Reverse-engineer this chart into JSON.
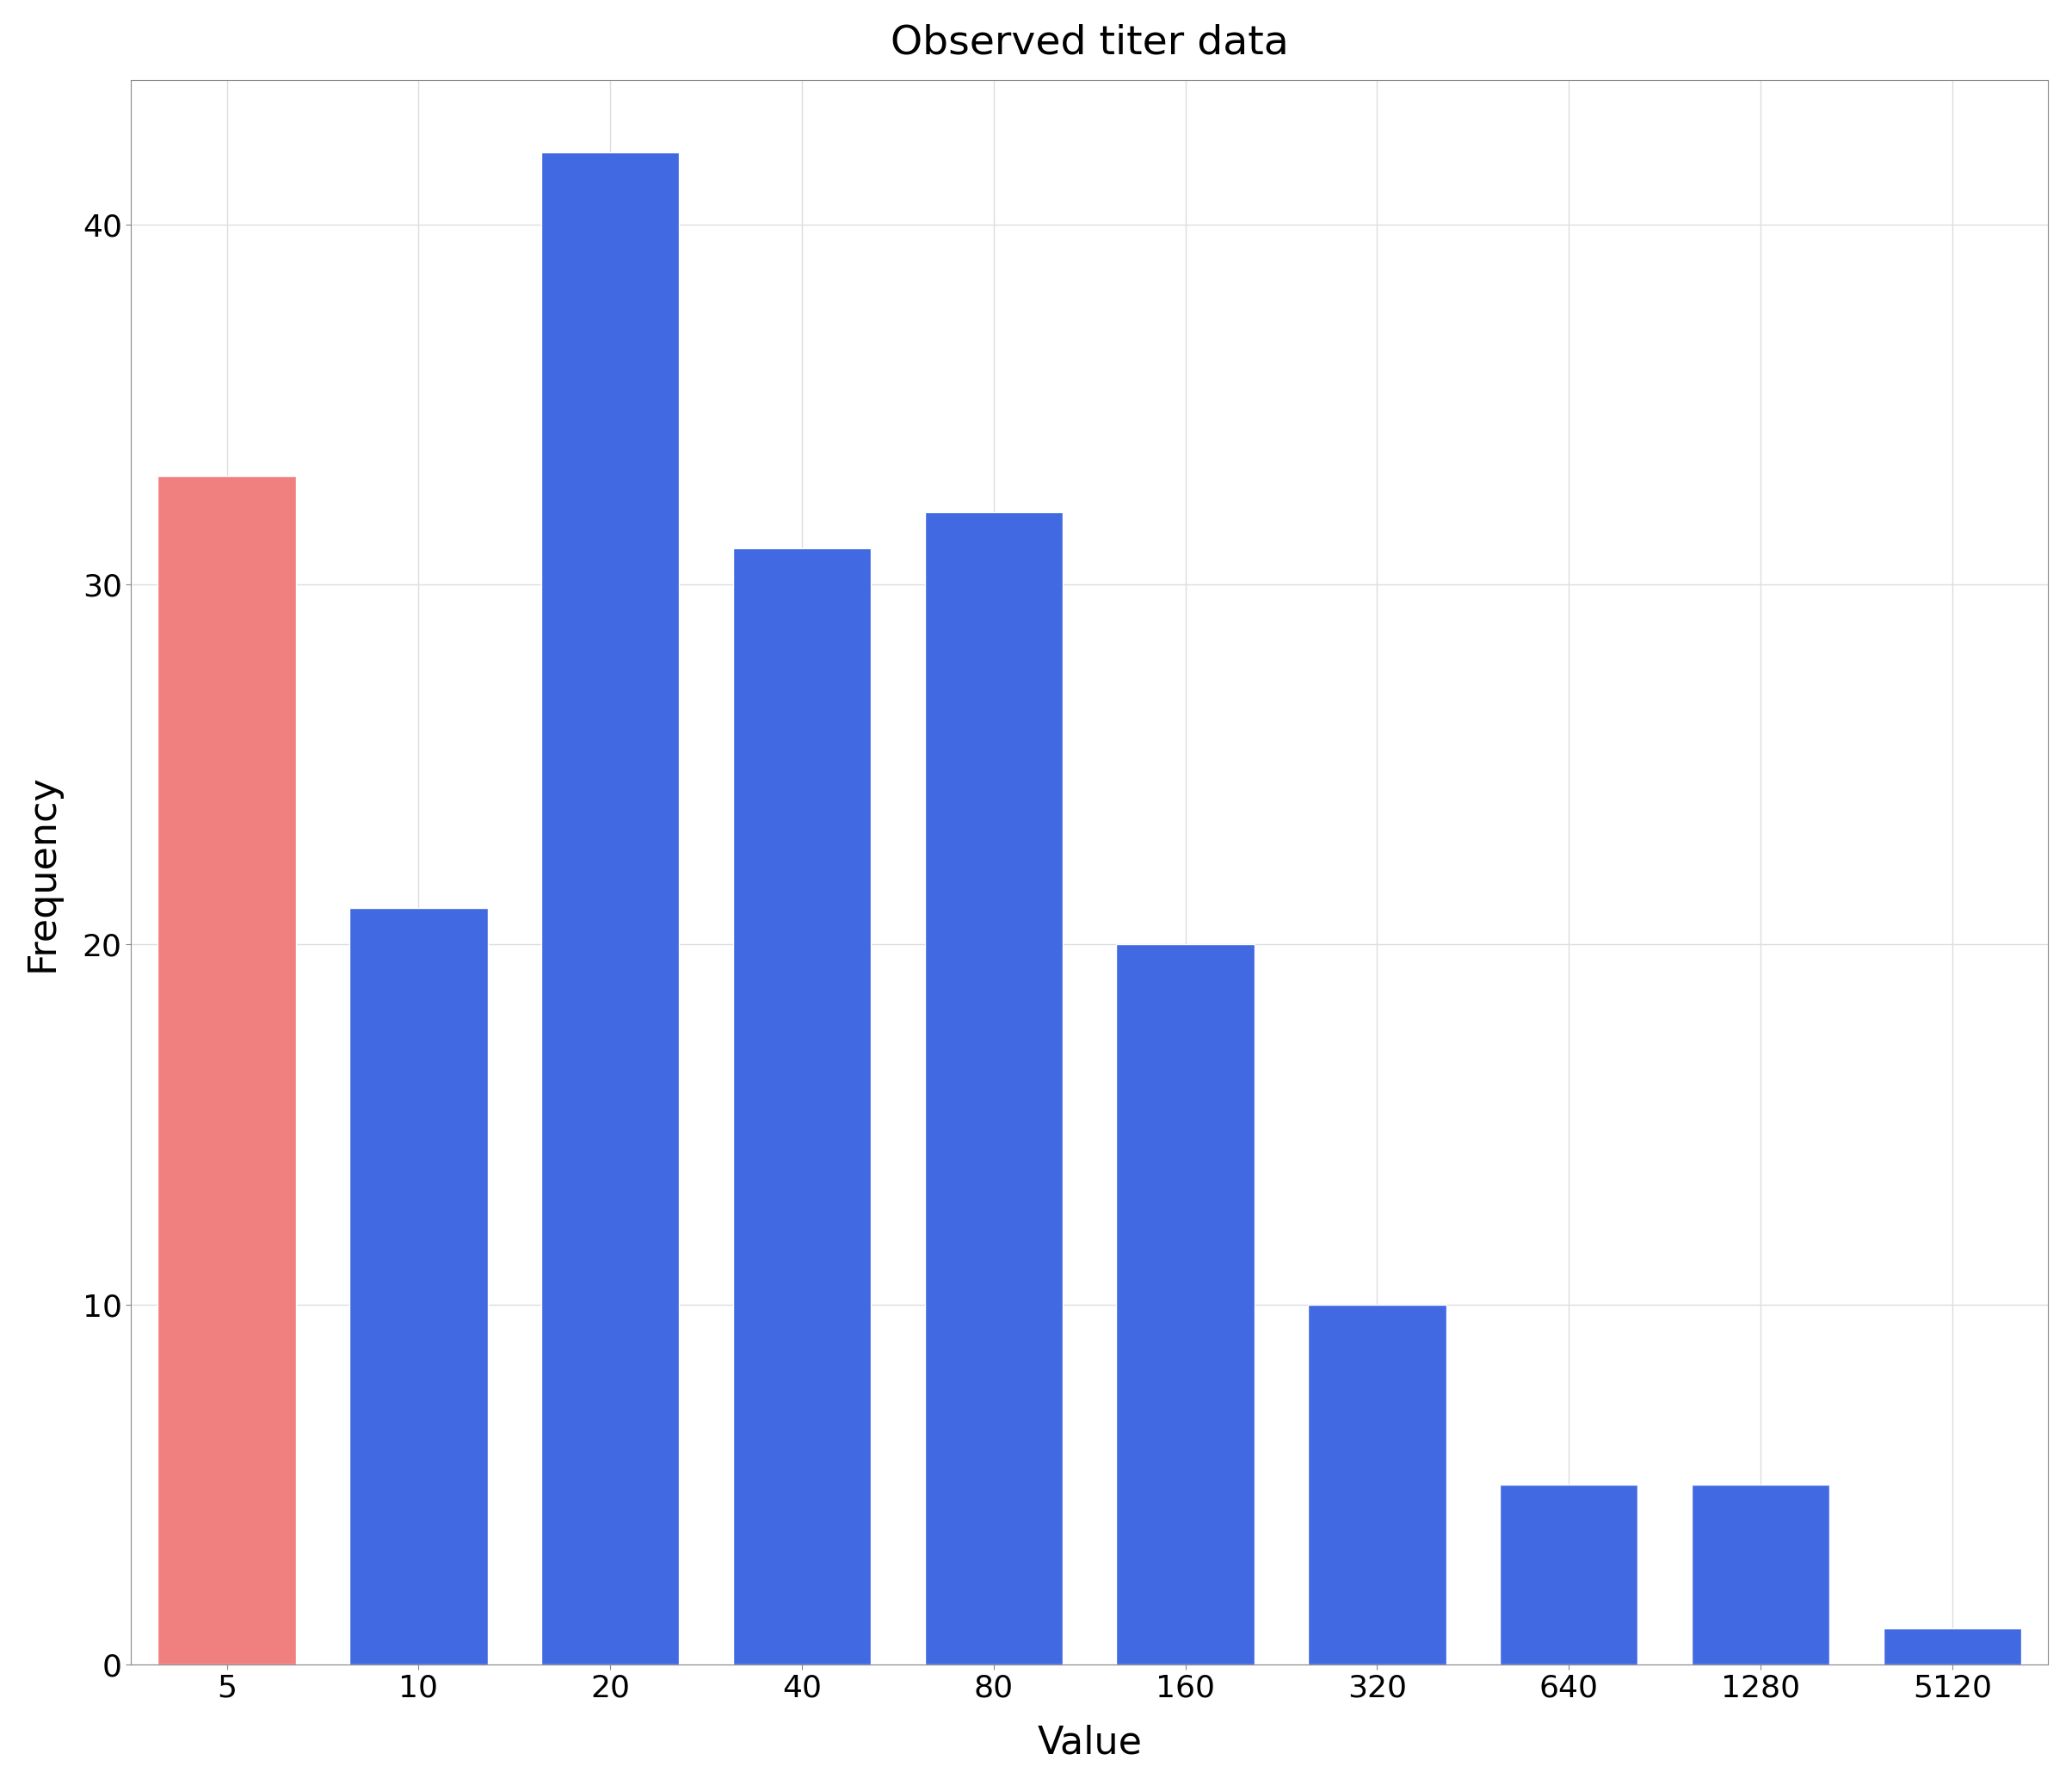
{
  "categories": [
    "5",
    "10",
    "20",
    "40",
    "80",
    "160",
    "320",
    "640",
    "1280",
    "5120"
  ],
  "values": [
    33,
    21,
    42,
    31,
    32,
    20,
    10,
    5,
    5,
    1
  ],
  "bar_colors": [
    "#F08080",
    "#4169E1",
    "#4169E1",
    "#4169E1",
    "#4169E1",
    "#4169E1",
    "#4169E1",
    "#4169E1",
    "#4169E1",
    "#4169E1"
  ],
  "title": "Observed titer data",
  "xlabel": "Value",
  "ylabel": "Frequency",
  "ylim": [
    0,
    44
  ],
  "yticks": [
    0,
    10,
    20,
    30,
    40
  ],
  "title_fontsize": 34,
  "axis_label_fontsize": 32,
  "tick_fontsize": 26,
  "plot_bg_color": "#FFFFFF",
  "fig_bg_color": "#FFFFFF",
  "grid_color": "#DDDDDD",
  "bar_edge_color": "#FFFFFF",
  "spine_color": "#888888"
}
